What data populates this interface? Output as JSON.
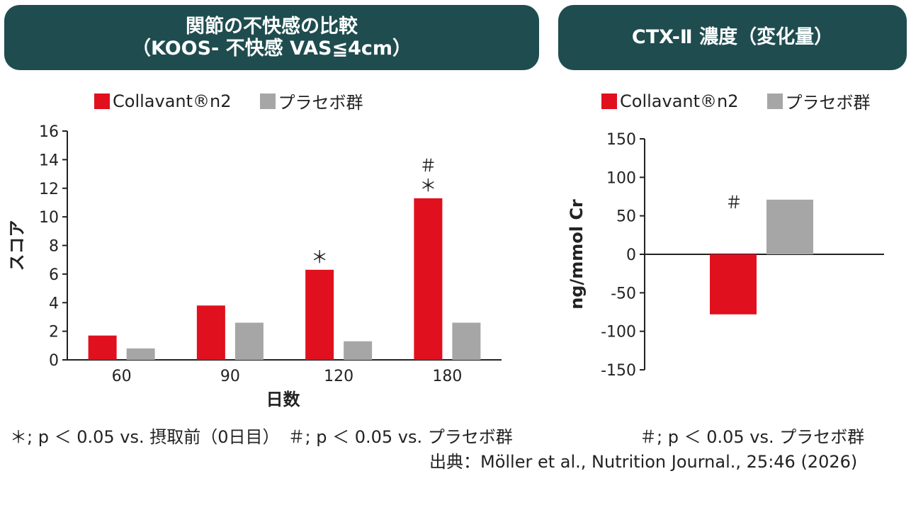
{
  "header_left": {
    "line1": "関節の不快感の比較",
    "line2": "（KOOS- 不快感 VAS≦4cm）"
  },
  "header_right": {
    "title": "CTX-Ⅱ 濃度（変化量）"
  },
  "colors": {
    "banner": "#1f4c4f",
    "collavant": "#e0101e",
    "placebo": "#a6a6a6"
  },
  "legend": {
    "series1": "Collavant®n2",
    "series2": "プラセボ群"
  },
  "chart_data": [
    {
      "type": "bar",
      "xlabel": "日数",
      "ylabel": "スコア",
      "ylim": [
        0,
        16
      ],
      "yticks": [
        0,
        2,
        4,
        6,
        8,
        10,
        12,
        14,
        16
      ],
      "categories": [
        "60",
        "90",
        "120",
        "180"
      ],
      "series": [
        {
          "name": "Collavant®n2",
          "values": [
            1.7,
            3.8,
            6.3,
            11.3
          ]
        },
        {
          "name": "プラセボ群",
          "values": [
            0.8,
            2.6,
            1.3,
            2.6
          ]
        }
      ],
      "annotations": [
        {
          "category": "120",
          "series": "Collavant®n2",
          "text": "＊"
        },
        {
          "category": "180",
          "series": "Collavant®n2",
          "text": "＊"
        },
        {
          "category": "180",
          "series": "Collavant®n2",
          "text": "＃"
        }
      ],
      "grid": false
    },
    {
      "type": "bar",
      "ylabel": "ng/mmol Cr",
      "ylim": [
        -150,
        150
      ],
      "yticks": [
        -150,
        -100,
        -50,
        0,
        50,
        100,
        150
      ],
      "categories": [
        ""
      ],
      "series": [
        {
          "name": "Collavant®n2",
          "values": [
            -78
          ]
        },
        {
          "name": "プラセボ群",
          "values": [
            71
          ]
        }
      ],
      "annotations": [
        {
          "series": "Collavant®n2",
          "text": "＃"
        }
      ],
      "grid": false
    }
  ],
  "notes": {
    "left": "＊; p ＜ 0.05 vs. 摂取前（0日目）　＃; p ＜ 0.05 vs. プラセボ群",
    "right": "＃; p ＜ 0.05 vs. プラセボ群"
  },
  "source": "出典：Möller et al., Nutrition Journal., 25:46 (2026)"
}
